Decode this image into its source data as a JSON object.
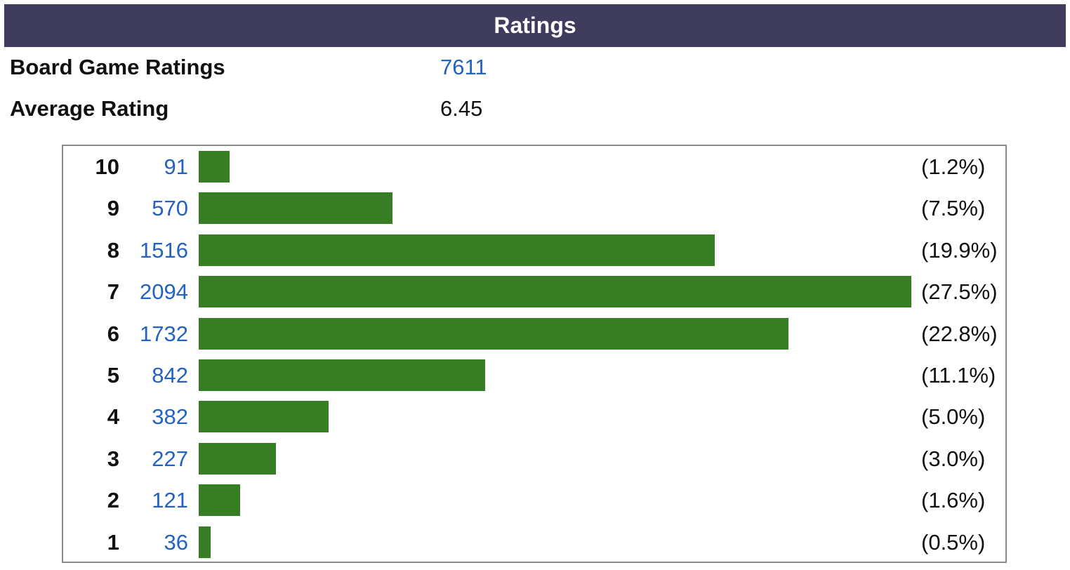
{
  "header": {
    "title": "Ratings"
  },
  "stats": {
    "board_game_ratings_label": "Board Game Ratings",
    "board_game_ratings_value": "7611",
    "average_rating_label": "Average Rating",
    "average_rating_value": "6.45"
  },
  "colors": {
    "header_bg": "#3f3c5e",
    "bar": "#367d23",
    "link": "#2462c0"
  },
  "chart_data": {
    "type": "bar",
    "orientation": "horizontal",
    "categories": [
      "10",
      "9",
      "8",
      "7",
      "6",
      "5",
      "4",
      "3",
      "2",
      "1"
    ],
    "values": [
      91,
      570,
      1516,
      2094,
      1732,
      842,
      382,
      227,
      121,
      36
    ],
    "percent_labels": [
      "(1.2%)",
      "(7.5%)",
      "(19.9%)",
      "(27.5%)",
      "(22.8%)",
      "(11.1%)",
      "(5.0%)",
      "(3.0%)",
      "(1.6%)",
      "(0.5%)"
    ],
    "title": "",
    "xlabel": "",
    "ylabel": "",
    "grid": false
  }
}
